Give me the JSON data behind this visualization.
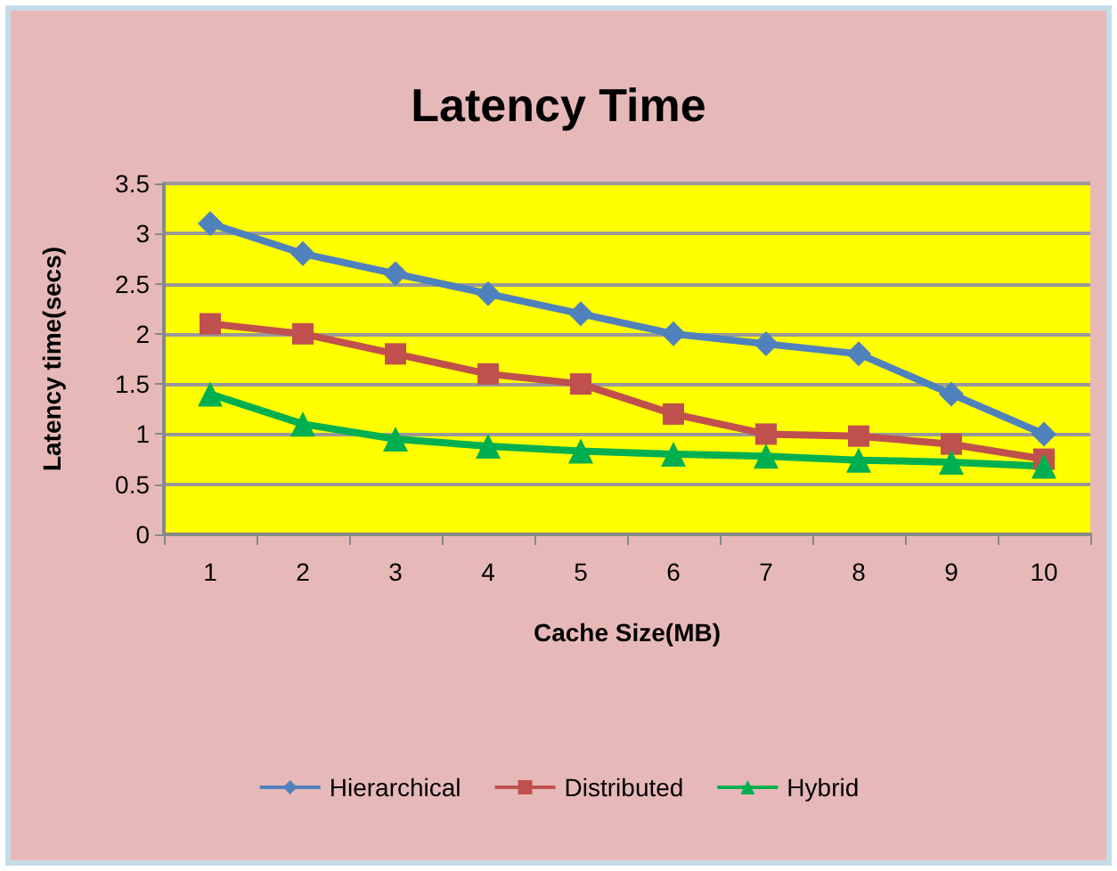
{
  "chart_data": {
    "type": "line",
    "title": "Latency Time",
    "xlabel": "Cache Size(MB)",
    "ylabel": "Latency time(secs)",
    "categories": [
      "1",
      "2",
      "3",
      "4",
      "5",
      "6",
      "7",
      "8",
      "9",
      "10"
    ],
    "series": [
      {
        "name": "Hierarchical",
        "color": "#4f81bd",
        "marker": "diamond",
        "values": [
          3.1,
          2.8,
          2.6,
          2.4,
          2.2,
          2.0,
          1.9,
          1.8,
          1.4,
          1.0
        ]
      },
      {
        "name": "Distributed",
        "color": "#c0504d",
        "marker": "square",
        "values": [
          2.1,
          2.0,
          1.8,
          1.6,
          1.5,
          1.2,
          1.0,
          0.98,
          0.9,
          0.75
        ]
      },
      {
        "name": "Hybrid",
        "color": "#00b050",
        "marker": "triangle",
        "values": [
          1.4,
          1.1,
          0.95,
          0.88,
          0.83,
          0.8,
          0.78,
          0.74,
          0.72,
          0.68
        ]
      }
    ],
    "ylim": [
      0,
      3.5
    ],
    "yticks": [
      0,
      0.5,
      1,
      1.5,
      2,
      2.5,
      3,
      3.5
    ],
    "grid": "y",
    "legend": "bottom"
  }
}
